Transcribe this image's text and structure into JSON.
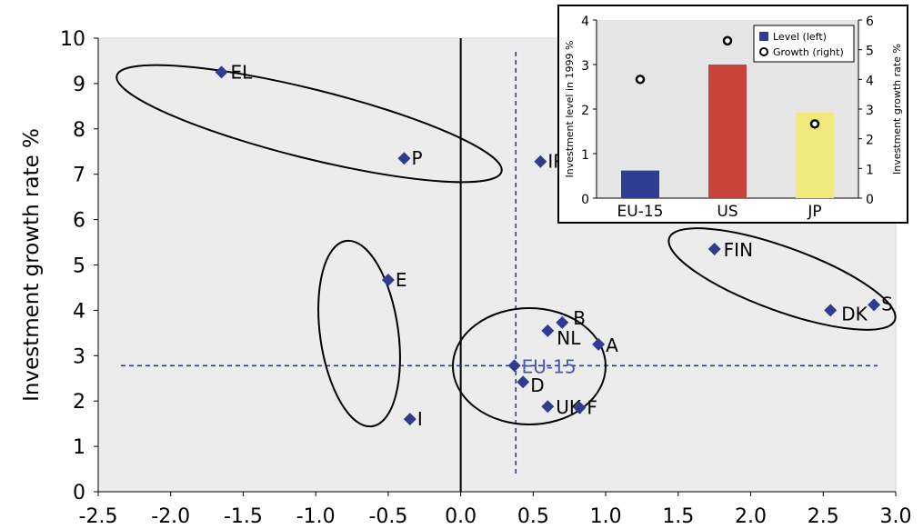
{
  "chart_data": [
    {
      "type": "scatter",
      "ylabel": "Investment growth rate %",
      "xlabel": "",
      "xlim": [
        -2.5,
        3.0
      ],
      "ylim": [
        0,
        10
      ],
      "x_ticks": [
        "-2.5",
        "-2.0",
        "-1.5",
        "-1.0",
        "-0.5",
        "0.0",
        "0.5",
        "1.0",
        "1.5",
        "2.0",
        "2.5",
        "3.0"
      ],
      "y_ticks": [
        "0",
        "1",
        "2",
        "3",
        "4",
        "5",
        "6",
        "7",
        "8",
        "9",
        "10"
      ],
      "grid": false,
      "reference_lines": {
        "x": 0.38,
        "y": 2.78
      },
      "points": [
        {
          "label": "EL",
          "x": -1.65,
          "y": 9.25
        },
        {
          "label": "P",
          "x": -0.39,
          "y": 7.35
        },
        {
          "label": "IRL",
          "x": 0.55,
          "y": 7.28
        },
        {
          "label": "E",
          "x": -0.5,
          "y": 4.67
        },
        {
          "label": "I",
          "x": -0.35,
          "y": 1.6
        },
        {
          "label": "B",
          "x": 0.7,
          "y": 3.73
        },
        {
          "label": "NL",
          "x": 0.6,
          "y": 3.55
        },
        {
          "label": "A",
          "x": 0.95,
          "y": 3.25
        },
        {
          "label": "EU-15",
          "x": 0.37,
          "y": 2.78
        },
        {
          "label": "D",
          "x": 0.43,
          "y": 2.42
        },
        {
          "label": "UK",
          "x": 0.6,
          "y": 1.88
        },
        {
          "label": "F",
          "x": 0.82,
          "y": 1.85
        },
        {
          "label": "FIN",
          "x": 1.75,
          "y": 5.35
        },
        {
          "label": "DK",
          "x": 2.55,
          "y": 4.0
        },
        {
          "label": "S",
          "x": 2.85,
          "y": 4.12
        }
      ],
      "colors": {
        "marker": "#2e3d8f",
        "reference": "#2e3d8f",
        "eu_label": "#4a5aa8",
        "plot_bg": "#ececec"
      }
    },
    {
      "type": "bar",
      "categories": [
        "EU-15",
        "US",
        "JP"
      ],
      "series": [
        {
          "name": "Level (left)",
          "axis": "left",
          "values": [
            0.62,
            3.0,
            1.92
          ]
        },
        {
          "name": "Growth (right)",
          "axis": "right",
          "values": [
            4.0,
            5.3,
            2.5
          ]
        }
      ],
      "ylabel": "Investment level in 1999 %",
      "ylabel_right": "Investment growth rate %",
      "ylim": [
        0,
        4
      ],
      "ylim_right": [
        0,
        6
      ],
      "y_ticks": [
        "0",
        "1",
        "2",
        "3",
        "4"
      ],
      "y_ticks_right": [
        "0",
        "1",
        "2",
        "3",
        "4",
        "5",
        "6"
      ],
      "legend": {
        "placement": "top-right",
        "entries": [
          "Level (left)",
          "Growth (right)"
        ]
      },
      "colors": {
        "EU-15": "#2e3d8f",
        "US": "#c8433a",
        "JP": "#efe87a",
        "growth_marker": "#000000"
      }
    }
  ]
}
